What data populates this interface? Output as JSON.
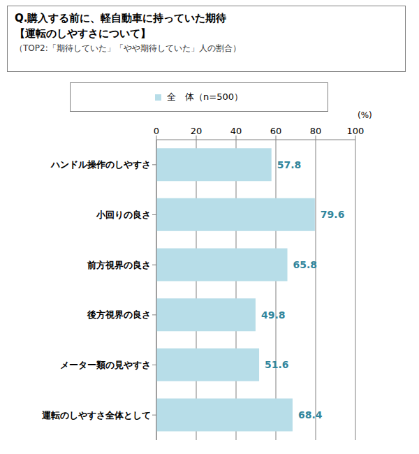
{
  "chart_data": {
    "type": "bar",
    "orientation": "horizontal",
    "title": [
      "Q.購入する前に、軽自動車に持っていた期待",
      "【運転のしやすさについて】"
    ],
    "subtitle": "（TOP2:「期待していた」「やや期待していた」人の割合）",
    "x_label": "(%)",
    "categories": [
      "ハンドル操作のしやすさ",
      "小回りの良さ",
      "前方視界の良さ",
      "後方視界の良さ",
      "メーター類の見やすさ",
      "運転のしやすさ全体として"
    ],
    "series": [
      {
        "name": "全　体（n=500）",
        "color": "#b7dde8",
        "values": [
          57.8,
          79.6,
          65.8,
          49.8,
          51.6,
          68.4
        ]
      }
    ],
    "xlim": [
      0,
      100
    ],
    "xticks": [
      0,
      20,
      40,
      60,
      80,
      100
    ],
    "grid": true,
    "legend": "top",
    "data_labels": true
  }
}
